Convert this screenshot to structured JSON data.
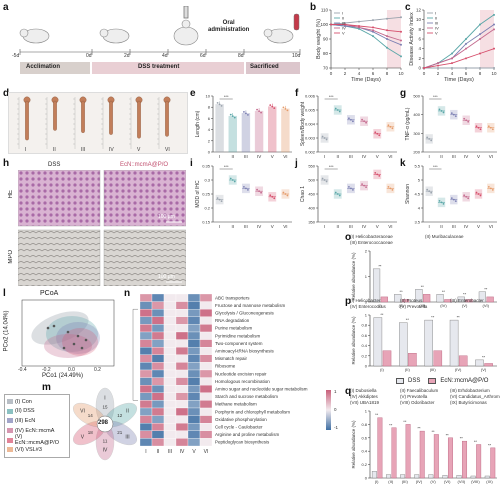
{
  "panels": {
    "a": "a",
    "b": "b",
    "c": "c",
    "d": "d",
    "e": "e",
    "f": "f",
    "g": "g",
    "h": "h",
    "i": "i",
    "j": "j",
    "k": "k",
    "l": "l",
    "m": "m",
    "n": "n",
    "o": "o",
    "p": "p",
    "q": "q"
  },
  "timeline": {
    "days": [
      "-5d",
      "0d",
      "2d",
      "4d",
      "6d",
      "8d",
      "10d"
    ],
    "phases": [
      "Acclimation",
      "DSS treatment",
      "Sacrificed"
    ],
    "oral_label": [
      "Oral",
      "administration"
    ],
    "colors": {
      "acclimation": "#d8d0cc",
      "dss": "#e9cfd4",
      "sacrificed": "#dcc6cc"
    }
  },
  "groups_roman": [
    "I",
    "II",
    "III",
    "IV",
    "V",
    "VI"
  ],
  "legend_groups": [
    "(I) Con",
    "(II) DSS",
    "(III) EcN",
    "(IV) EcN::mcmA",
    "(V) EcN::mcmA@P/O",
    "(VI) VSL#3"
  ],
  "group_colors": [
    "#9aa3ad",
    "#5aa7a8",
    "#7b7fb2",
    "#c46a8e",
    "#d64f6c",
    "#e59b6a"
  ],
  "chart_data": [
    {
      "id": "b",
      "type": "line",
      "xlabel": "Time (Days)",
      "ylabel": "Body weight (%)",
      "x": [
        0,
        2,
        4,
        6,
        8,
        10
      ],
      "xlim": [
        0,
        10
      ],
      "ylim": [
        70,
        110
      ],
      "yticks": [
        70,
        80,
        90,
        100,
        110
      ],
      "series": [
        {
          "name": "I",
          "values": [
            100,
            101,
            102,
            103,
            104,
            105
          ]
        },
        {
          "name": "II",
          "values": [
            100,
            99,
            97,
            92,
            84,
            78
          ]
        },
        {
          "name": "III",
          "values": [
            100,
            99,
            98,
            95,
            90,
            86
          ]
        },
        {
          "name": "IV",
          "values": [
            100,
            100,
            98,
            96,
            92,
            89
          ]
        },
        {
          "name": "V",
          "values": [
            100,
            100,
            99,
            98,
            96,
            95
          ]
        }
      ]
    },
    {
      "id": "c",
      "type": "line",
      "xlabel": "Time (Days)",
      "ylabel": "Disease Activity Index",
      "x": [
        0,
        2,
        4,
        6,
        8,
        10
      ],
      "xlim": [
        0,
        10
      ],
      "ylim": [
        0,
        12
      ],
      "yticks": [
        0,
        2,
        4,
        6,
        8,
        10,
        12
      ],
      "series": [
        {
          "name": "I",
          "values": [
            0,
            0,
            0,
            0,
            0,
            0
          ]
        },
        {
          "name": "II",
          "values": [
            0,
            1,
            3,
            6,
            9,
            11
          ]
        },
        {
          "name": "III",
          "values": [
            0,
            1,
            2,
            5,
            7,
            9
          ]
        },
        {
          "name": "IV",
          "values": [
            0,
            1,
            2,
            4,
            6,
            8
          ]
        },
        {
          "name": "V",
          "values": [
            0,
            0.5,
            1,
            2,
            3,
            4
          ]
        }
      ]
    },
    {
      "id": "e",
      "type": "bar",
      "ylabel": "Length (cm)",
      "categories": [
        "I",
        "II",
        "III",
        "IV",
        "V",
        "VI"
      ],
      "values": [
        8.5,
        6.4,
        6.9,
        7.3,
        8.1,
        7.7
      ],
      "ylim": [
        0,
        10
      ],
      "yticks": [
        0,
        2,
        4,
        6,
        8,
        10
      ]
    },
    {
      "id": "f",
      "type": "box",
      "ylabel": "Spleen/Body weight",
      "categories": [
        "I",
        "II",
        "III",
        "IV",
        "V",
        "VI"
      ],
      "values": [
        0.003,
        0.005,
        0.0043,
        0.0042,
        0.0033,
        0.0038
      ],
      "ylim": [
        0.002,
        0.006
      ],
      "yticks": [
        0.002,
        0.003,
        0.004,
        0.005,
        0.006
      ]
    },
    {
      "id": "g",
      "type": "box",
      "ylabel": "TNF-α (pg/mL)",
      "categories": [
        "I",
        "II",
        "III",
        "IV",
        "V",
        "VI"
      ],
      "values": [
        270,
        420,
        400,
        370,
        330,
        330
      ],
      "ylim": [
        200,
        500
      ],
      "yticks": [
        200,
        300,
        400,
        500
      ]
    },
    {
      "id": "i",
      "type": "box",
      "ylabel": "MOD of IHC",
      "categories": [
        "I",
        "II",
        "III",
        "IV",
        "V",
        "VI"
      ],
      "values": [
        0.23,
        0.3,
        0.27,
        0.26,
        0.24,
        0.25
      ],
      "ylim": [
        0.15,
        0.35
      ],
      "yticks": [
        0.15,
        0.2,
        0.25,
        0.3,
        0.35
      ]
    },
    {
      "id": "j",
      "type": "box",
      "ylabel": "Chao 1",
      "categories": [
        "I",
        "II",
        "III",
        "IV",
        "V",
        "VI"
      ],
      "values": [
        500,
        450,
        470,
        480,
        520,
        470
      ],
      "ylim": [
        350,
        550
      ],
      "yticks": [
        350,
        400,
        450,
        500,
        550
      ]
    },
    {
      "id": "k",
      "type": "box",
      "ylabel": "Shannon",
      "categories": [
        "I",
        "II",
        "III",
        "IV",
        "V",
        "VI"
      ],
      "values": [
        4.6,
        4.2,
        4.3,
        4.4,
        4.5,
        4.7
      ],
      "ylim": [
        3.5,
        5.5
      ],
      "yticks": [
        3.5,
        4.0,
        4.5,
        5.0,
        5.5
      ]
    },
    {
      "id": "o",
      "type": "bar",
      "ylabel": "Relative abundance (%)",
      "legend": [
        "(I) Helicobacteraceae",
        "(II) Muribaculaceae",
        "(III) Enterococcaceae"
      ],
      "categories": [
        "(I)",
        "(II)",
        "(III)",
        "(IV)",
        "(V)",
        "(VI)"
      ],
      "series": [
        {
          "name": "DSS",
          "values": [
            1.3,
            0.3,
            0.5,
            0.3,
            0.2,
            0.4
          ]
        },
        {
          "name": "EcN::mcmA@P/O",
          "values": [
            0.2,
            0.1,
            0.3,
            0.1,
            0.1,
            0.2
          ]
        }
      ],
      "ylim": [
        0,
        2
      ]
    },
    {
      "id": "p",
      "type": "bar",
      "ylabel": "Relative abundance (%)",
      "legend": [
        "(I) Helicobacter",
        "(II) Proteus",
        "(III) Enterobacter",
        "(IV) Enterococcus",
        "(V) Prevotella"
      ],
      "categories": [
        "(I)",
        "(II)",
        "(III)",
        "(IV)",
        "(V)"
      ],
      "series": [
        {
          "name": "DSS",
          "values": [
            0.95,
            0.85,
            0.9,
            0.9,
            0.12
          ]
        },
        {
          "name": "EcN::mcmA@P/O",
          "values": [
            0.3,
            0.25,
            0.3,
            0.2,
            0.05
          ]
        }
      ],
      "ylim": [
        0,
        1.0
      ],
      "yticks": [
        0.0,
        0.2,
        0.4,
        0.6,
        0.8,
        1.0
      ]
    },
    {
      "id": "q",
      "type": "bar",
      "ylabel": "Relative abundance (%)",
      "legend": [
        "(I) Dubosiella",
        "(II) Faecalibaculum",
        "(III) Erhdobacterium",
        "(IV) Akkdiptes",
        "(V) Prevotella",
        "(VI) Candidatus_Arthromitus",
        "(VII) UBA1819",
        "(VIII) Odoribacter",
        "(IX) Butyricimonas"
      ],
      "categories": [
        "(I)",
        "(II)",
        "(III)",
        "(IV)",
        "(V)",
        "(VI)",
        "(VII)",
        "(VIII)",
        "(IX)"
      ],
      "series": [
        {
          "name": "DSS",
          "values": [
            0.1,
            0.05,
            0.05,
            0.05,
            0.05,
            0.04,
            0.04,
            0.03,
            0.03
          ]
        },
        {
          "name": "EcN::mcmA@P/O",
          "values": [
            0.9,
            0.75,
            0.8,
            0.7,
            0.65,
            0.6,
            0.55,
            0.5,
            0.45
          ]
        }
      ],
      "ylim": [
        0,
        1.0
      ],
      "yticks": [
        0.0,
        0.2,
        0.4,
        0.6,
        0.8,
        1.0
      ]
    }
  ],
  "pcoa": {
    "title": "PCoA",
    "xlabel": "PCo1 (24.49%)",
    "ylabel": "PCo2 (14.04%)",
    "xticks": [
      "-0.4",
      "-0.2",
      "0.0",
      "0.2"
    ],
    "yticks": [
      "0.2",
      "0.0",
      "-0.2",
      "-0.4"
    ]
  },
  "histology": {
    "col_titles": [
      "DSS",
      "EcN::mcmA@P/O"
    ],
    "row_titles": [
      "HE",
      "MPO"
    ],
    "scale": "100 μm"
  },
  "heatmap": {
    "pathways": [
      "ABC transporters",
      "Fructose and mannose metabolism",
      "Glycolysis / Gluconeogenesis",
      "RNA degradation",
      "Purine metabolism",
      "Pyrimidine metabolism",
      "Two-component system",
      "Aminoacyl-tRNA biosynthesis",
      "Mismatch repair",
      "Ribosome",
      "Nucleotide excision repair",
      "Homologous recombination",
      "Amino sugar and nucleotide sugar metabolism",
      "Starch and sucrose metabolism",
      "Methane metabolism",
      "Porphyrin and chlorophyll metabolism",
      "Oxidative phosphorylation",
      "Cell cycle - Caulobacter",
      "Arginine and proline metabolism",
      "Peptidoglycan biosynthesis"
    ],
    "columns": [
      "I",
      "II",
      "III",
      "IV",
      "V",
      "VI"
    ],
    "scale_ticks": [
      "1",
      "0",
      "-1"
    ],
    "colors": {
      "high": "#c8607a",
      "mid": "#f2eaee",
      "low": "#3f6fa3"
    }
  },
  "flower": {
    "center_value": "298",
    "petals": [
      "I",
      "II",
      "III",
      "IV",
      "V",
      "VI"
    ],
    "petal_values": [
      "15",
      "12",
      "21",
      "11",
      "18",
      "14"
    ]
  },
  "bottom_legend": {
    "dss": "DSS",
    "treated": "EcN::mcmA@P/O",
    "dss_color": "#e6e8ee",
    "treated_color": "#e7a4b7"
  },
  "d_labels": [
    "I",
    "II",
    "III",
    "IV",
    "V",
    "VI"
  ]
}
